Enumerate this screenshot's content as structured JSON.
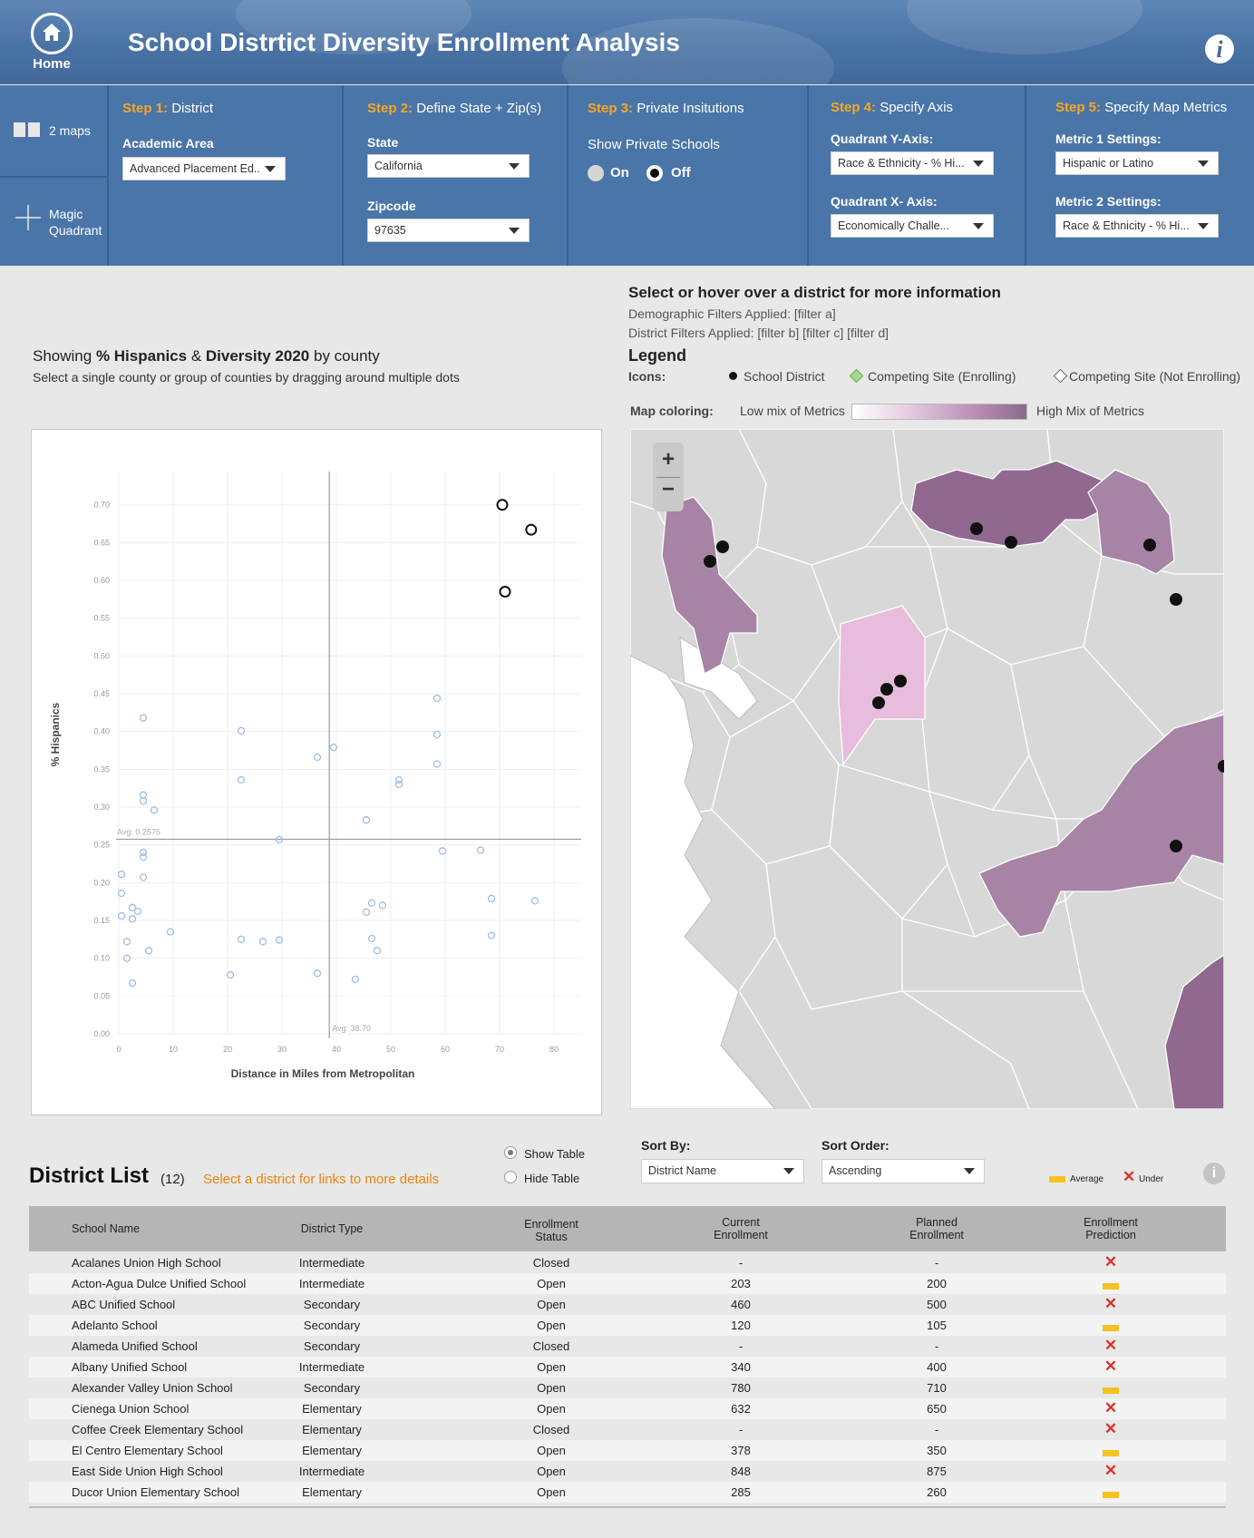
{
  "app": {
    "title": "School Distrtict Diversity Enrollment Analysis",
    "home_label": "Home"
  },
  "sidebar": {
    "two_maps": "2 maps",
    "magic_quadrant_1": "Magic",
    "magic_quadrant_2": "Quadrant"
  },
  "steps": {
    "step1": {
      "num": "Step 1:",
      "name": "District",
      "label": "Academic Area",
      "value": "Advanced Placement Ed.."
    },
    "step2": {
      "num": "Step 2:",
      "name": "Define State + Zip(s)",
      "state_label": "State",
      "state_value": "California",
      "zip_label": "Zipcode",
      "zip_value": "97635"
    },
    "step3": {
      "num": "Step 3:",
      "name": "Private Insitutions",
      "label": "Show Private Schools",
      "on": "On",
      "off": "Off",
      "selected": "Off"
    },
    "step4": {
      "num": "Step 4:",
      "name": "Specify Axis",
      "y_label": "Quadrant Y-Axis:",
      "y_value": "Race & Ethnicity - % Hi...",
      "x_label": "Quadrant X- Axis:",
      "x_value": "Economically Challe..."
    },
    "step5": {
      "num": "Step 5:",
      "name": "Specify Map Metrics",
      "m1_label": "Metric 1 Settings:",
      "m1_value": "Hispanic or Latino",
      "m2_label": "Metric 2 Settings:",
      "m2_value": "Race & Ethnicity - % Hi..."
    }
  },
  "info": {
    "title": "Select or hover over a district for more information",
    "demo_filters": "Demographic Filters Applied: [filter a]",
    "district_filters": "District Filters Applied: [filter b] [filter c] [filter d]",
    "legend_title": "Legend",
    "icons_label": "Icons:",
    "icon1": "School District",
    "icon2": "Competing Site (Enrolling)",
    "icon3": "Competing Site (Not Enrolling)",
    "map_coloring_label": "Map coloring:",
    "low": "Low mix of Metrics",
    "high": "High Mix of Metrics"
  },
  "chart_caption": {
    "pre": "Showing ",
    "b1": "% Hispanics",
    "mid": " & ",
    "b2": "Diversity 2020",
    "post": " by county",
    "sub": "Select a single county or group of counties by dragging around multiple dots"
  },
  "chart_data": {
    "type": "scatter",
    "title": "",
    "xlabel": "Distance in Miles from Metropolitan",
    "ylabel": "% Hispanics",
    "xlim": [
      0,
      85
    ],
    "ylim": [
      0,
      0.72
    ],
    "xticks": [
      0,
      10,
      20,
      30,
      40,
      50,
      60,
      70,
      80
    ],
    "yticks": [
      "0.00",
      "0.05",
      "0.10",
      "0.15",
      "0.20",
      "0.25",
      "0.30",
      "0.35",
      "0.40",
      "0.45",
      "0.50",
      "0.55",
      "0.60",
      "0.65",
      "0.70"
    ],
    "avg_x": 38.7,
    "avg_y": 0.2575,
    "avg_x_label": "Avg: 38.70",
    "avg_y_label": "Avg: 0.2575",
    "highlighted": [
      {
        "x": 70.5,
        "y": 0.7
      },
      {
        "x": 75.8,
        "y": 0.667
      },
      {
        "x": 71.0,
        "y": 0.585
      }
    ],
    "points": [
      {
        "x": 4.5,
        "y": 0.418
      },
      {
        "x": 22.5,
        "y": 0.401
      },
      {
        "x": 22.5,
        "y": 0.336
      },
      {
        "x": 4.5,
        "y": 0.316
      },
      {
        "x": 4.5,
        "y": 0.308
      },
      {
        "x": 6.5,
        "y": 0.296
      },
      {
        "x": 36.5,
        "y": 0.366
      },
      {
        "x": 39.5,
        "y": 0.379
      },
      {
        "x": 51.5,
        "y": 0.336
      },
      {
        "x": 51.5,
        "y": 0.33
      },
      {
        "x": 58.5,
        "y": 0.444
      },
      {
        "x": 58.5,
        "y": 0.396
      },
      {
        "x": 58.5,
        "y": 0.357
      },
      {
        "x": 45.5,
        "y": 0.283
      },
      {
        "x": 29.5,
        "y": 0.257
      },
      {
        "x": 59.5,
        "y": 0.242
      },
      {
        "x": 66.5,
        "y": 0.243
      },
      {
        "x": 4.5,
        "y": 0.24
      },
      {
        "x": 4.5,
        "y": 0.234
      },
      {
        "x": 0.5,
        "y": 0.211
      },
      {
        "x": 4.5,
        "y": 0.207
      },
      {
        "x": 0.5,
        "y": 0.186
      },
      {
        "x": 0.5,
        "y": 0.156
      },
      {
        "x": 2.5,
        "y": 0.167
      },
      {
        "x": 3.5,
        "y": 0.162
      },
      {
        "x": 2.5,
        "y": 0.152
      },
      {
        "x": 9.5,
        "y": 0.135
      },
      {
        "x": 1.5,
        "y": 0.122
      },
      {
        "x": 5.5,
        "y": 0.11
      },
      {
        "x": 1.5,
        "y": 0.1
      },
      {
        "x": 2.5,
        "y": 0.067
      },
      {
        "x": 22.5,
        "y": 0.125
      },
      {
        "x": 26.5,
        "y": 0.122
      },
      {
        "x": 29.5,
        "y": 0.124
      },
      {
        "x": 20.5,
        "y": 0.078
      },
      {
        "x": 36.5,
        "y": 0.08
      },
      {
        "x": 43.5,
        "y": 0.072
      },
      {
        "x": 45.5,
        "y": 0.161
      },
      {
        "x": 46.5,
        "y": 0.173
      },
      {
        "x": 48.5,
        "y": 0.17
      },
      {
        "x": 46.5,
        "y": 0.126
      },
      {
        "x": 47.5,
        "y": 0.11
      },
      {
        "x": 68.5,
        "y": 0.179
      },
      {
        "x": 76.5,
        "y": 0.176
      },
      {
        "x": 68.5,
        "y": 0.13
      }
    ]
  },
  "list": {
    "title": "District List",
    "count": "(12)",
    "hint": "Select a district for links to more details",
    "show_table": "Show Table",
    "hide_table": "Hide Table",
    "sort_by_label": "Sort By:",
    "sort_by_value": "District Name",
    "sort_order_label": "Sort Order:",
    "sort_order_value": "Ascending",
    "legend_average": "Average",
    "legend_under": "Under",
    "columns": {
      "name": "School Name",
      "type": "District Type",
      "status1": "Enrollment",
      "status2": "Status",
      "current1": "Current",
      "current2": "Enrollment",
      "planned1": "Planned",
      "planned2": "Enrollment",
      "pred1": "Enrollment",
      "pred2": "Prediction"
    },
    "rows": [
      {
        "name": "Acalanes Union High School",
        "type": "Intermediate",
        "status": "Closed",
        "current": "-",
        "planned": "-",
        "pred": "under"
      },
      {
        "name": "Acton-Agua Dulce Unified School",
        "type": "Intermediate",
        "status": "Open",
        "current": "203",
        "planned": "200",
        "pred": "average"
      },
      {
        "name": "ABC Unified School",
        "type": "Secondary",
        "status": "Open",
        "current": "460",
        "planned": "500",
        "pred": "under"
      },
      {
        "name": "Adelanto School",
        "type": "Secondary",
        "status": "Open",
        "current": "120",
        "planned": "105",
        "pred": "average"
      },
      {
        "name": "Alameda Unified School",
        "type": "Secondary",
        "status": "Closed",
        "current": "-",
        "planned": "-",
        "pred": "under"
      },
      {
        "name": "Albany Unified School",
        "type": "Intermediate",
        "status": "Open",
        "current": "340",
        "planned": "400",
        "pred": "under"
      },
      {
        "name": "Alexander Valley Union School",
        "type": "Secondary",
        "status": "Open",
        "current": "780",
        "planned": "710",
        "pred": "average"
      },
      {
        "name": "Cienega Union School",
        "type": "Elementary",
        "status": "Open",
        "current": "632",
        "planned": "650",
        "pred": "under"
      },
      {
        "name": "Coffee Creek Elementary School",
        "type": "Elementary",
        "status": "Closed",
        "current": "-",
        "planned": "-",
        "pred": "under"
      },
      {
        "name": "El Centro Elementary School",
        "type": "Elementary",
        "status": "Open",
        "current": "378",
        "planned": "350",
        "pred": "average"
      },
      {
        "name": "East Side Union High School",
        "type": "Intermediate",
        "status": "Open",
        "current": "848",
        "planned": "875",
        "pred": "under"
      },
      {
        "name": "Ducor Union Elementary School",
        "type": "Elementary",
        "status": "Open",
        "current": "285",
        "planned": "260",
        "pred": "average"
      }
    ]
  },
  "colors": {
    "accent": "#f7a823",
    "header": "#4a75a8",
    "map_high": "#8e6690",
    "map_low": "#e7bcdc",
    "under": "#e0302b",
    "average": "#f7c21e"
  }
}
